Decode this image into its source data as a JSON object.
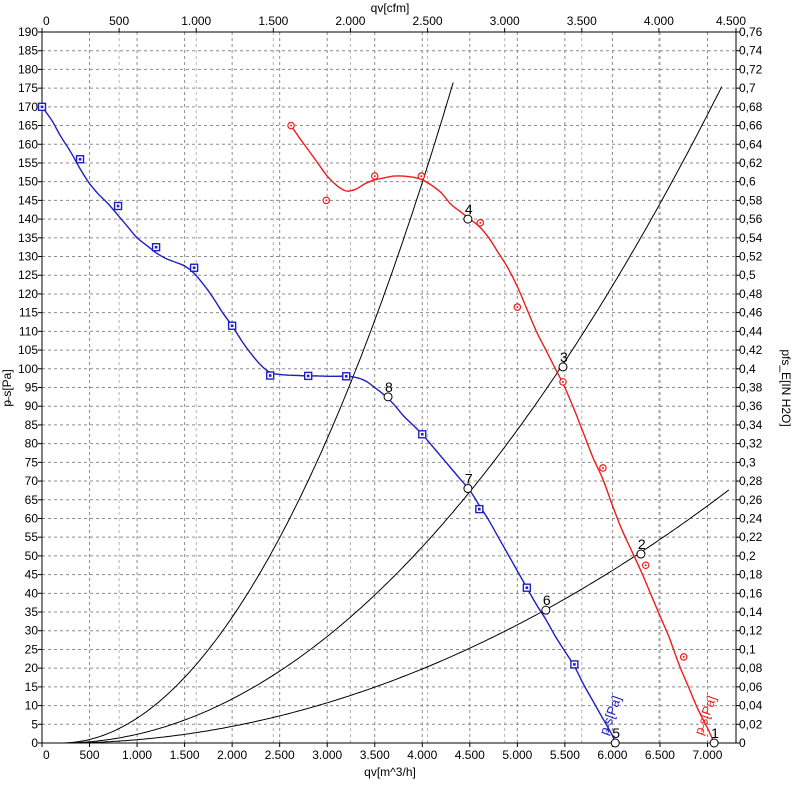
{
  "chart_data": {
    "type": "line",
    "axes": {
      "bottom": {
        "label": "qv[m^3/h]",
        "range": [
          0,
          7300
        ],
        "ticks": [
          0,
          500,
          1000,
          1500,
          2000,
          2500,
          3000,
          3500,
          4000,
          4500,
          5000,
          5500,
          6000,
          6500,
          7000
        ],
        "tick_labels": [
          "0",
          "500",
          "1.000",
          "1.500",
          "2.000",
          "2.500",
          "3.000",
          "3.500",
          "4.000",
          "4.500",
          "5.000",
          "5.500",
          "6.000",
          "6.500",
          "7.000"
        ]
      },
      "top": {
        "label": "qv[cfm]",
        "range": [
          0,
          4500
        ],
        "ticks": [
          0,
          500,
          1000,
          1500,
          2000,
          2500,
          3000,
          3500,
          4000,
          4500
        ],
        "tick_labels": [
          "0",
          "500",
          "1.000",
          "1.500",
          "2.000",
          "2.500",
          "3.000",
          "3.500",
          "4.000",
          "4.500"
        ]
      },
      "left": {
        "label": "p̶ s[Pa]",
        "range": [
          0,
          190
        ],
        "ticks": [
          0,
          5,
          10,
          15,
          20,
          25,
          30,
          35,
          40,
          45,
          50,
          55,
          60,
          65,
          70,
          75,
          80,
          85,
          90,
          95,
          100,
          105,
          110,
          115,
          120,
          125,
          130,
          135,
          140,
          145,
          150,
          155,
          160,
          165,
          170,
          175,
          180,
          185,
          190
        ],
        "tick_labels": [
          "0",
          "5",
          "10",
          "15",
          "20",
          "25",
          "30",
          "35",
          "40",
          "45",
          "50",
          "55",
          "60",
          "65",
          "70",
          "75",
          "80",
          "85",
          "90",
          "95",
          "100",
          "105",
          "110",
          "115",
          "120",
          "125",
          "130",
          "135",
          "140",
          "145",
          "150",
          "155",
          "160",
          "165",
          "170",
          "175",
          "180",
          "185",
          "190"
        ]
      },
      "right": {
        "label": "pfs_E[IN H2O]",
        "range": [
          0,
          0.76
        ],
        "ticks": [
          0,
          0.02,
          0.04,
          0.06,
          0.08,
          0.1,
          0.12,
          0.14,
          0.16,
          0.18,
          0.2,
          0.22,
          0.24,
          0.26,
          0.28,
          0.3,
          0.32,
          0.34,
          0.36,
          0.38,
          0.4,
          0.42,
          0.44,
          0.46,
          0.48,
          0.5,
          0.52,
          0.54,
          0.56,
          0.58,
          0.6,
          0.62,
          0.64,
          0.66,
          0.68,
          0.7,
          0.72,
          0.74,
          0.76
        ],
        "tick_labels": [
          "0",
          "0,02",
          "0,04",
          "0,06",
          "0,08",
          "0,1",
          "0,12",
          "0,14",
          "0,16",
          "0,18",
          "0,2",
          "0,22",
          "0,24",
          "0,26",
          "0,28",
          "0,3",
          "0,32",
          "0,34",
          "0,36",
          "0,38",
          "0,4",
          "0,42",
          "0,44",
          "0,46",
          "0,48",
          "0,5",
          "0,52",
          "0,54",
          "0,56",
          "0,58",
          "0,6",
          "0,62",
          "0,64",
          "0,66",
          "0,68",
          "0,7",
          "0,72",
          "0,74",
          "0,76"
        ]
      }
    },
    "grid": true,
    "series": [
      {
        "label": "p̶ s[Pa]",
        "color": "#ee1c1c",
        "marker": "circle",
        "curve": [
          [
            2620,
            165
          ],
          [
            2700,
            162
          ],
          [
            2800,
            158.5
          ],
          [
            2900,
            155
          ],
          [
            3000,
            151.5
          ],
          [
            3100,
            149
          ],
          [
            3200,
            147.5
          ],
          [
            3300,
            148
          ],
          [
            3400,
            149.5
          ],
          [
            3500,
            150.5
          ],
          [
            3600,
            151
          ],
          [
            3700,
            151.5
          ],
          [
            3800,
            151.5
          ],
          [
            3900,
            151.2
          ],
          [
            4000,
            150.5
          ],
          [
            4100,
            149
          ],
          [
            4200,
            147
          ],
          [
            4300,
            144
          ],
          [
            4400,
            142
          ],
          [
            4500,
            140
          ],
          [
            4600,
            138
          ],
          [
            4700,
            135
          ],
          [
            4800,
            131
          ],
          [
            4900,
            127
          ],
          [
            5000,
            122
          ],
          [
            5100,
            116
          ],
          [
            5200,
            110
          ],
          [
            5300,
            105
          ],
          [
            5400,
            100
          ],
          [
            5500,
            95
          ],
          [
            5600,
            89
          ],
          [
            5700,
            82.5
          ],
          [
            5800,
            76
          ],
          [
            5900,
            70.5
          ],
          [
            6000,
            63.5
          ],
          [
            6100,
            57
          ],
          [
            6200,
            51.5
          ],
          [
            6300,
            46
          ],
          [
            6400,
            40
          ],
          [
            6500,
            34
          ],
          [
            6600,
            28
          ],
          [
            6700,
            21
          ],
          [
            6800,
            15
          ],
          [
            6900,
            9
          ],
          [
            7000,
            4
          ],
          [
            7070,
            0
          ]
        ],
        "markers": [
          [
            2620,
            165
          ],
          [
            2990,
            145
          ],
          [
            3500,
            151.5
          ],
          [
            3990,
            151.5
          ],
          [
            4610,
            139
          ],
          [
            5000,
            116.5
          ],
          [
            5480,
            96.5
          ],
          [
            5900,
            73.5
          ],
          [
            6350,
            47.5
          ],
          [
            6750,
            23
          ]
        ]
      },
      {
        "label": "p̶ s[Pa]",
        "color": "#1f1fc2",
        "marker": "square",
        "curve": [
          [
            0,
            170
          ],
          [
            100,
            166.5
          ],
          [
            200,
            162
          ],
          [
            300,
            158
          ],
          [
            400,
            153.5
          ],
          [
            500,
            149.5
          ],
          [
            600,
            146.5
          ],
          [
            700,
            144
          ],
          [
            800,
            141
          ],
          [
            900,
            138
          ],
          [
            1000,
            135
          ],
          [
            1100,
            133
          ],
          [
            1200,
            131
          ],
          [
            1300,
            129.5
          ],
          [
            1400,
            128.5
          ],
          [
            1500,
            127.5
          ],
          [
            1600,
            125.5
          ],
          [
            1700,
            122.5
          ],
          [
            1800,
            119
          ],
          [
            1900,
            115
          ],
          [
            2000,
            111.5
          ],
          [
            2100,
            107.5
          ],
          [
            2200,
            104
          ],
          [
            2300,
            101
          ],
          [
            2400,
            99
          ],
          [
            2500,
            98.5
          ],
          [
            2600,
            98.3
          ],
          [
            2700,
            98.2
          ],
          [
            2800,
            98.1
          ],
          [
            2900,
            98.1
          ],
          [
            3000,
            98
          ],
          [
            3100,
            98
          ],
          [
            3200,
            98
          ],
          [
            3300,
            97.7
          ],
          [
            3400,
            96.8
          ],
          [
            3500,
            95
          ],
          [
            3600,
            93
          ],
          [
            3700,
            90.5
          ],
          [
            3800,
            87.5
          ],
          [
            3900,
            85
          ],
          [
            4000,
            82.5
          ],
          [
            4100,
            79.5
          ],
          [
            4200,
            76.5
          ],
          [
            4300,
            73.5
          ],
          [
            4400,
            70.5
          ],
          [
            4500,
            67.5
          ],
          [
            4600,
            63.5
          ],
          [
            4700,
            59.5
          ],
          [
            4800,
            55
          ],
          [
            4900,
            50.5
          ],
          [
            5000,
            46
          ],
          [
            5100,
            41.5
          ],
          [
            5200,
            37
          ],
          [
            5300,
            33
          ],
          [
            5400,
            28.5
          ],
          [
            5500,
            24.5
          ],
          [
            5600,
            20.5
          ],
          [
            5700,
            15.5
          ],
          [
            5800,
            11
          ],
          [
            5900,
            6.5
          ],
          [
            6000,
            2
          ],
          [
            6030,
            0
          ]
        ],
        "markers": [
          [
            0,
            170
          ],
          [
            400,
            156
          ],
          [
            800,
            143.5
          ],
          [
            1200,
            132.5
          ],
          [
            1600,
            127
          ],
          [
            2000,
            111.5
          ],
          [
            2400,
            98.2
          ],
          [
            2800,
            98.1
          ],
          [
            3200,
            98
          ],
          [
            4000,
            82.5
          ],
          [
            4600,
            62.5
          ],
          [
            5100,
            41.5
          ],
          [
            5600,
            21
          ]
        ]
      }
    ],
    "system_curves": [
      {
        "points": [
          [
            0,
            0
          ],
          [
            200,
            0
          ],
          [
            3900,
            142
          ],
          [
            4950,
            176
          ]
        ]
      },
      {
        "points": [
          [
            0,
            0
          ],
          [
            200,
            0
          ],
          [
            5500,
            102
          ],
          [
            7200,
            176
          ]
        ]
      },
      {
        "points": [
          [
            0,
            0
          ],
          [
            200,
            0
          ],
          [
            6300,
            51
          ],
          [
            7250,
            67.5
          ]
        ]
      }
    ],
    "operating_points": [
      {
        "label": "1",
        "x": 7070,
        "y": 0
      },
      {
        "label": "2",
        "x": 6300,
        "y": 50.5
      },
      {
        "label": "3",
        "x": 5480,
        "y": 100.5
      },
      {
        "label": "4",
        "x": 4480,
        "y": 140
      },
      {
        "label": "5",
        "x": 6030,
        "y": 0
      },
      {
        "label": "6",
        "x": 5300,
        "y": 35.5
      },
      {
        "label": "7",
        "x": 4480,
        "y": 68
      },
      {
        "label": "8",
        "x": 3640,
        "y": 92.5
      }
    ],
    "curve_labels": [
      {
        "text": "p̶ s[Pa]",
        "color": "#ee1c1c",
        "x": 7020,
        "y": 7
      },
      {
        "text": "p̶ s[Pa]",
        "color": "#1f1fc2",
        "x": 6020,
        "y": 7
      }
    ]
  }
}
